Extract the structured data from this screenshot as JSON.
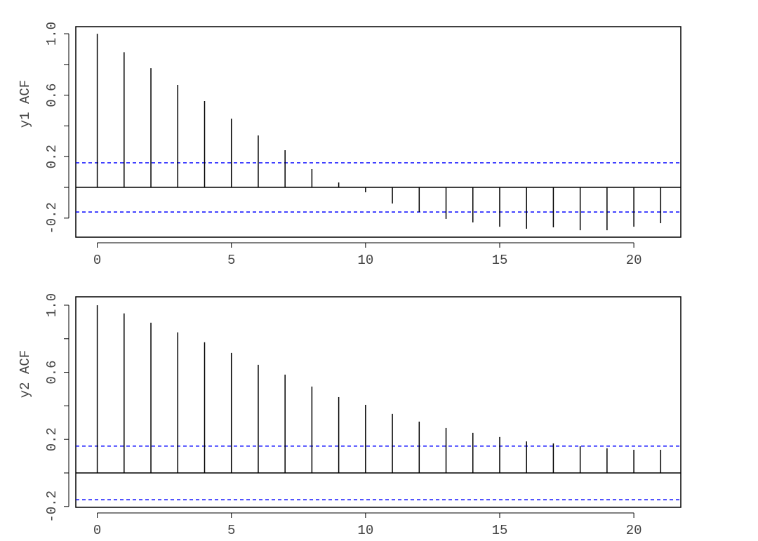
{
  "chart_data": [
    {
      "type": "stem",
      "ylabel": "y1 ACF",
      "x": [
        0,
        1,
        2,
        3,
        4,
        5,
        6,
        7,
        8,
        9,
        10,
        11,
        12,
        13,
        14,
        15,
        16,
        17,
        18,
        19,
        20,
        21
      ],
      "values": [
        1.0,
        0.88,
        0.776,
        0.667,
        0.562,
        0.447,
        0.338,
        0.242,
        0.119,
        0.032,
        -0.032,
        -0.105,
        -0.16,
        -0.205,
        -0.228,
        -0.256,
        -0.269,
        -0.26,
        -0.279,
        -0.279,
        -0.256,
        -0.233
      ],
      "color": "#000000",
      "confidence_bound": 0.16,
      "confidence_color": "#0000ff",
      "xlim": [
        -0.8,
        21.75
      ],
      "xticks": [
        0,
        5,
        10,
        15,
        20
      ],
      "ylim": [
        -0.324,
        1.046
      ],
      "yticks": [
        -0.2,
        {
          "value": 0,
          "label": null
        },
        0.2,
        {
          "value": 0.4,
          "label": null
        },
        0.6,
        {
          "value": 0.8,
          "label": null
        },
        {
          "value": 1,
          "label": "1.0"
        }
      ]
    },
    {
      "type": "stem",
      "ylabel": "y2 ACF",
      "x": [
        0,
        1,
        2,
        3,
        4,
        5,
        6,
        7,
        8,
        9,
        10,
        11,
        12,
        13,
        14,
        15,
        16,
        17,
        18,
        19,
        20,
        21
      ],
      "values": [
        1.0,
        0.951,
        0.896,
        0.838,
        0.779,
        0.716,
        0.645,
        0.586,
        0.515,
        0.452,
        0.406,
        0.352,
        0.306,
        0.268,
        0.239,
        0.214,
        0.188,
        0.176,
        0.159,
        0.147,
        0.138,
        0.138
      ],
      "color": "#000000",
      "confidence_bound": 0.16,
      "confidence_color": "#0000ff",
      "xlim": [
        -0.8,
        21.75
      ],
      "xticks": [
        0,
        5,
        10,
        15,
        20
      ],
      "ylim": [
        -0.205,
        1.05
      ],
      "yticks": [
        -0.2,
        {
          "value": 0,
          "label": null
        },
        0.2,
        {
          "value": 0.4,
          "label": null
        },
        0.6,
        {
          "value": 0.8,
          "label": null
        },
        {
          "value": 1,
          "label": "1.0"
        }
      ]
    }
  ]
}
